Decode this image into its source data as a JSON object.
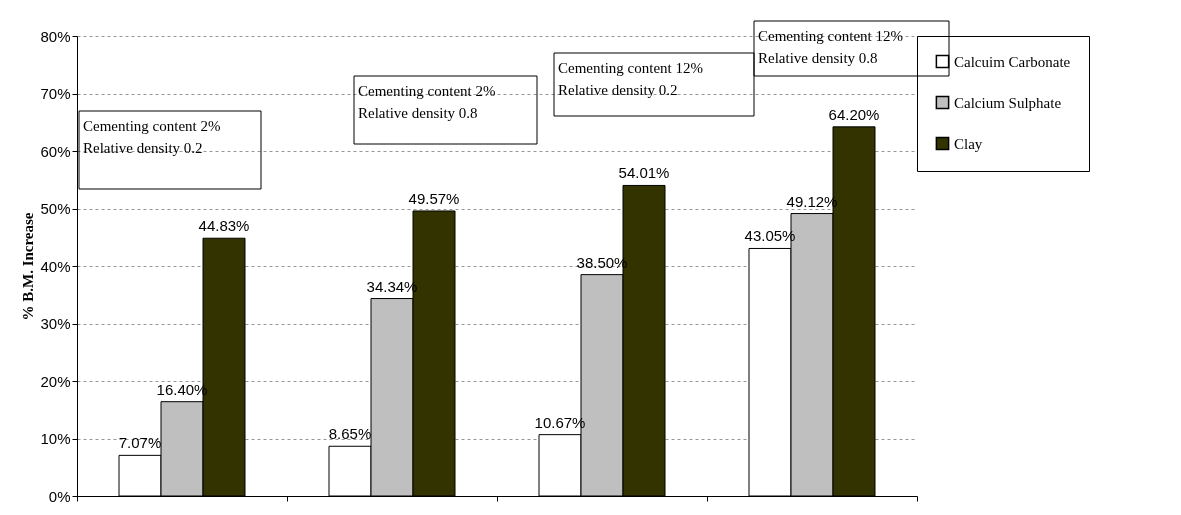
{
  "chart_data": {
    "type": "bar",
    "ylabel": "% B.M. Increase",
    "categories": [
      null,
      null,
      null,
      null
    ],
    "series": [
      {
        "name": "Calcuim Carbonate",
        "color": "#ffffff",
        "values": [
          7.07,
          8.65,
          10.67,
          43.05
        ],
        "value_labels": [
          "7.07%",
          "8.65%",
          "10.67%",
          "43.05%"
        ]
      },
      {
        "name": "Calcium Sulphate",
        "color": "#bfbfbf",
        "values": [
          16.4,
          34.34,
          38.5,
          49.12
        ],
        "value_labels": [
          "16.40%",
          "34.34%",
          "38.50%",
          "49.12%"
        ]
      },
      {
        "name": "Clay",
        "color": "#333300",
        "values": [
          44.83,
          49.57,
          54.01,
          64.2
        ],
        "value_labels": [
          "44.83%",
          "49.57%",
          "54.01%",
          "64.20%"
        ]
      }
    ],
    "ylim": [
      0,
      80
    ],
    "yticks": [
      {
        "value": 0,
        "label": "0%"
      },
      {
        "value": 10,
        "label": "10%"
      },
      {
        "value": 20,
        "label": "20%"
      },
      {
        "value": 30,
        "label": "30%"
      },
      {
        "value": 40,
        "label": "40%"
      },
      {
        "value": 50,
        "label": "50%"
      },
      {
        "value": 60,
        "label": "60%"
      },
      {
        "value": 70,
        "label": "70%"
      },
      {
        "value": 80,
        "label": "80%"
      }
    ],
    "annotations": [
      "Cementing content 2%\nRelative density 0.2",
      "Cementing content 2%\nRelative density 0.8",
      "Cementing content 12%\nRelative density 0.2",
      "Cementing content 12%\nRelative density 0.8"
    ],
    "grid": "y",
    "legend": "right"
  }
}
